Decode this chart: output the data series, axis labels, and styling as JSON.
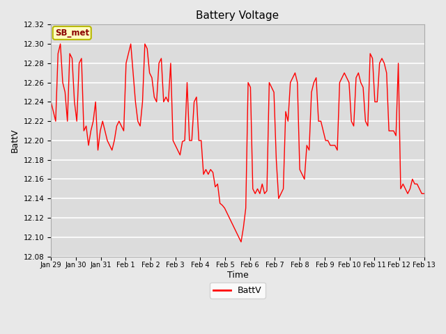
{
  "title": "Battery Voltage",
  "xlabel": "Time",
  "ylabel": "BattV",
  "legend_label": "BattV",
  "annotation_text": "SB_met",
  "ylim": [
    12.08,
    12.32
  ],
  "line_color": "red",
  "bg_color": "#e8e8e8",
  "plot_bg_color": "#dcdcdc",
  "grid_color": "white",
  "xtick_labels": [
    "Jan 29",
    "Jan 30",
    "Jan 31",
    "Feb 1",
    "Feb 2",
    "Feb 3",
    "Feb 4",
    "Feb 5",
    "Feb 6",
    "Feb 7",
    "Feb 8",
    "Feb 9",
    "Feb 10",
    "Feb 11",
    "Feb 12",
    "Feb 13"
  ],
  "y_values": [
    12.24,
    12.23,
    12.22,
    12.29,
    12.3,
    12.26,
    12.25,
    12.22,
    12.29,
    12.285,
    12.24,
    12.22,
    12.28,
    12.285,
    12.21,
    12.215,
    12.195,
    12.21,
    12.22,
    12.24,
    12.19,
    12.21,
    12.22,
    12.21,
    12.2,
    12.195,
    12.19,
    12.2,
    12.215,
    12.22,
    12.215,
    12.21,
    12.28,
    12.29,
    12.3,
    12.27,
    12.24,
    12.22,
    12.215,
    12.24,
    12.3,
    12.295,
    12.27,
    12.265,
    12.245,
    12.24,
    12.28,
    12.285,
    12.24,
    12.245,
    12.24,
    12.28,
    12.2,
    12.195,
    12.19,
    12.185,
    12.199,
    12.2,
    12.26,
    12.2,
    12.2,
    12.24,
    12.245,
    12.2,
    12.2,
    12.165,
    12.17,
    12.165,
    12.17,
    12.167,
    12.152,
    12.155,
    12.135,
    12.133,
    12.13,
    12.125,
    12.12,
    12.115,
    12.11,
    12.105,
    12.1,
    12.095,
    12.11,
    12.13,
    12.26,
    12.255,
    12.15,
    12.145,
    12.15,
    12.145,
    12.155,
    12.145,
    12.148,
    12.26,
    12.255,
    12.25,
    12.18,
    12.14,
    12.145,
    12.15,
    12.23,
    12.22,
    12.26,
    12.265,
    12.27,
    12.26,
    12.17,
    12.165,
    12.16,
    12.195,
    12.19,
    12.25,
    12.26,
    12.265,
    12.22,
    12.22,
    12.21,
    12.2,
    12.2,
    12.195,
    12.195,
    12.195,
    12.19,
    12.26,
    12.265,
    12.27,
    12.265,
    12.26,
    12.22,
    12.215,
    12.265,
    12.27,
    12.26,
    12.255,
    12.22,
    12.215,
    12.29,
    12.285,
    12.24,
    12.24,
    12.28,
    12.285,
    12.28,
    12.27,
    12.21,
    12.21,
    12.21,
    12.205,
    12.28,
    12.15,
    12.155,
    12.15,
    12.145,
    12.15,
    12.16,
    12.155,
    12.155,
    12.15,
    12.145,
    12.145
  ]
}
